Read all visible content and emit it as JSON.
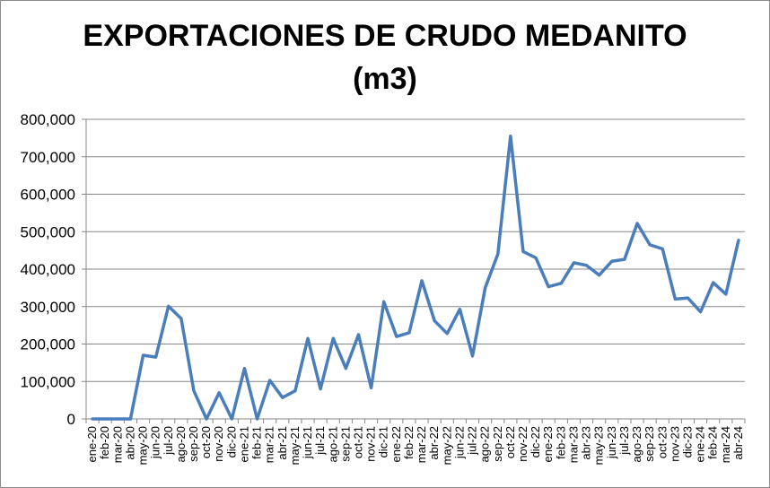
{
  "chart_data": {
    "type": "line",
    "title_line1": "EXPORTACIONES DE CRUDO MEDANITO",
    "title_line2": "(m3)",
    "xlabel": "",
    "ylabel": "",
    "ylim": [
      0,
      800000
    ],
    "y_ticks": [
      "0",
      "100,000",
      "200,000",
      "300,000",
      "400,000",
      "500,000",
      "600,000",
      "700,000",
      "800,000"
    ],
    "grid": "horizontal",
    "legend": "none",
    "line_color": "#4a7ebb",
    "categories": [
      "ene-20",
      "feb-20",
      "mar-20",
      "abr-20",
      "may-20",
      "jun-20",
      "jul-20",
      "ago-20",
      "sep-20",
      "oct-20",
      "nov-20",
      "dic-20",
      "ene-21",
      "feb-21",
      "mar-21",
      "abr-21",
      "may-21",
      "jun-21",
      "jul-21",
      "ago-21",
      "sep-21",
      "oct-21",
      "nov-21",
      "dic-21",
      "ene-22",
      "feb-22",
      "mar-22",
      "abr-22",
      "may-22",
      "jun-22",
      "jul-22",
      "ago-22",
      "sep-22",
      "oct-22",
      "nov-22",
      "dic-22",
      "ene-23",
      "feb-23",
      "mar-23",
      "abr-23",
      "may-23",
      "jun-23",
      "jul-23",
      "ago-23",
      "sep-23",
      "oct-23",
      "nov-23",
      "dic-23",
      "ene-24",
      "feb-24",
      "mar-24",
      "abr-24"
    ],
    "values": [
      0,
      0,
      0,
      0,
      170000,
      165000,
      301000,
      268000,
      75000,
      0,
      70000,
      0,
      135000,
      0,
      103000,
      57000,
      75000,
      215000,
      80000,
      215000,
      135000,
      225000,
      83000,
      313000,
      220000,
      230000,
      369000,
      262000,
      228000,
      293000,
      168000,
      350000,
      440000,
      755000,
      447000,
      430000,
      353000,
      362000,
      417000,
      410000,
      384000,
      421000,
      426000,
      522000,
      465000,
      454000,
      320000,
      323000,
      286000,
      364000,
      333000,
      477000
    ]
  }
}
